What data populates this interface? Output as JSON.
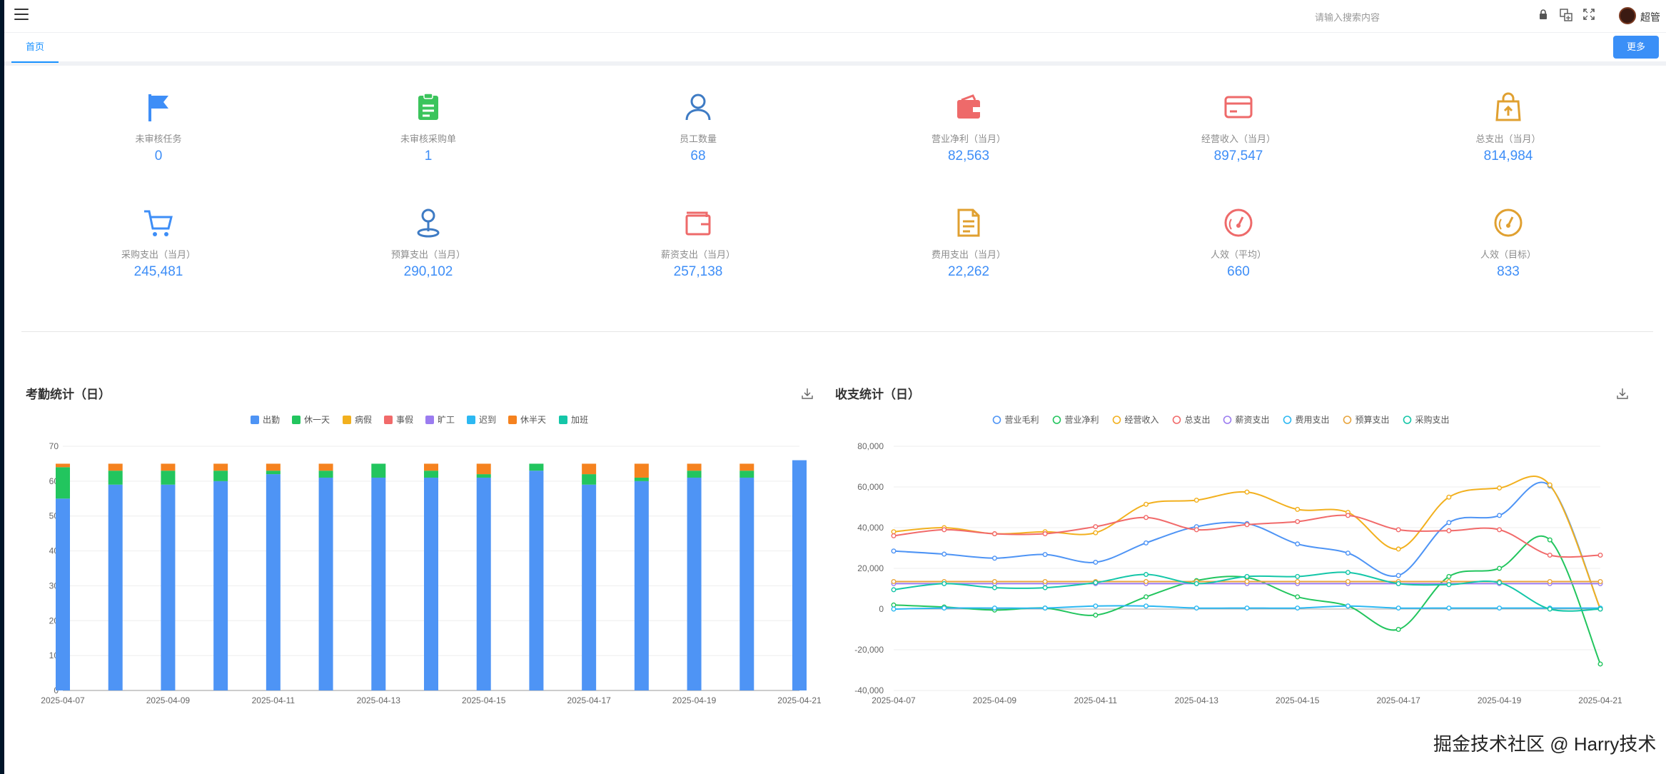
{
  "header": {
    "search_placeholder": "请输入搜索内容",
    "user_name": "超管",
    "icons": [
      "lock-icon",
      "translate-icon",
      "fullscreen-icon"
    ]
  },
  "tabs": {
    "home": "首页",
    "more": "更多"
  },
  "stats": [
    {
      "icon": "flag-icon",
      "color": "#3e8ef7",
      "label": "未审核任务",
      "value": "0"
    },
    {
      "icon": "clipboard-icon",
      "color": "#3bc45c",
      "label": "未审核采购单",
      "value": "1"
    },
    {
      "icon": "user-icon",
      "color": "#3e7bc4",
      "label": "员工数量",
      "value": "68"
    },
    {
      "icon": "wallet-icon",
      "color": "#ee6a6a",
      "label": "营业净利（当月）",
      "value": "82,563"
    },
    {
      "icon": "credit-card-icon",
      "color": "#ee6a6a",
      "label": "经营收入（当月）",
      "value": "897,547"
    },
    {
      "icon": "shopping-bag-icon",
      "color": "#e0a030",
      "label": "总支出（当月）",
      "value": "814,984"
    },
    {
      "icon": "cart-icon",
      "color": "#3e8ef7",
      "label": "采购支出（当月）",
      "value": "245,481"
    },
    {
      "icon": "location-pin-icon",
      "color": "#3e7bc4",
      "label": "预算支出（当月）",
      "value": "290,102"
    },
    {
      "icon": "wallet-outline-icon",
      "color": "#ee6a6a",
      "label": "薪资支出（当月）",
      "value": "257,138"
    },
    {
      "icon": "document-icon",
      "color": "#e0a030",
      "label": "费用支出（当月）",
      "value": "22,262"
    },
    {
      "icon": "gauge-icon",
      "color": "#ee6a6a",
      "label": "人效（平均）",
      "value": "660"
    },
    {
      "icon": "gauge-target-icon",
      "color": "#e0a030",
      "label": "人效（目标）",
      "value": "833"
    }
  ],
  "watermark": "掘金技术社区 @ Harry技术",
  "chart_data": [
    {
      "type": "bar",
      "stacked": true,
      "title": "考勤统计（日）",
      "categories": [
        "2025-04-07",
        "2025-04-08",
        "2025-04-09",
        "2025-04-10",
        "2025-04-11",
        "2025-04-12",
        "2025-04-13",
        "2025-04-14",
        "2025-04-15",
        "2025-04-16",
        "2025-04-17",
        "2025-04-18",
        "2025-04-19",
        "2025-04-20",
        "2025-04-21"
      ],
      "x_tick_labels": [
        "2025-04-07",
        "2025-04-09",
        "2025-04-11",
        "2025-04-13",
        "2025-04-15",
        "2025-04-17",
        "2025-04-19",
        "2025-04-21"
      ],
      "ylim": [
        0,
        70
      ],
      "y_ticks": [
        0,
        10,
        20,
        30,
        40,
        50,
        60,
        70
      ],
      "legend_position": "top-center",
      "series": [
        {
          "name": "出勤",
          "color": "#4e94f5",
          "values": [
            55,
            59,
            59,
            60,
            62,
            61,
            61,
            61,
            61,
            63,
            59,
            60,
            61,
            61,
            66
          ]
        },
        {
          "name": "休一天",
          "color": "#22c55e",
          "values": [
            9,
            4,
            4,
            3,
            1,
            2,
            4,
            2,
            1,
            2,
            3,
            1,
            2,
            2,
            0
          ]
        },
        {
          "name": "病假",
          "color": "#f2b01e",
          "values": [
            0,
            0,
            0,
            0,
            0,
            0,
            0,
            0,
            0,
            0,
            0,
            0,
            0,
            0,
            0
          ]
        },
        {
          "name": "事假",
          "color": "#f16a6a",
          "values": [
            0,
            0,
            0,
            0,
            0,
            0,
            0,
            0,
            0,
            0,
            0,
            0,
            0,
            0,
            0
          ]
        },
        {
          "name": "旷工",
          "color": "#9b7cf0",
          "values": [
            0,
            0,
            0,
            0,
            0,
            0,
            0,
            0,
            0,
            0,
            0,
            0,
            0,
            0,
            0
          ]
        },
        {
          "name": "迟到",
          "color": "#2cb8f2",
          "values": [
            0,
            0,
            0,
            0,
            0,
            0,
            0,
            0,
            0,
            0,
            0,
            0,
            0,
            0,
            0
          ]
        },
        {
          "name": "休半天",
          "color": "#f5821f",
          "values": [
            1,
            2,
            2,
            2,
            2,
            2,
            0,
            2,
            3,
            0,
            3,
            4,
            2,
            2,
            0
          ]
        },
        {
          "name": "加班",
          "color": "#14c6a8",
          "values": [
            0,
            0,
            0,
            0,
            0,
            0,
            0,
            0,
            0,
            0,
            0,
            0,
            0,
            0,
            0
          ]
        }
      ]
    },
    {
      "type": "line",
      "smooth": true,
      "title": "收支统计（日）",
      "categories": [
        "2025-04-07",
        "2025-04-08",
        "2025-04-09",
        "2025-04-10",
        "2025-04-11",
        "2025-04-12",
        "2025-04-13",
        "2025-04-14",
        "2025-04-15",
        "2025-04-16",
        "2025-04-17",
        "2025-04-18",
        "2025-04-19",
        "2025-04-20",
        "2025-04-21"
      ],
      "x_tick_labels": [
        "2025-04-07",
        "2025-04-09",
        "2025-04-11",
        "2025-04-13",
        "2025-04-15",
        "2025-04-17",
        "2025-04-19",
        "2025-04-21"
      ],
      "ylim": [
        -40000,
        80000
      ],
      "y_ticks": [
        -40000,
        -20000,
        0,
        20000,
        40000,
        60000,
        80000
      ],
      "y_tick_labels": [
        "-40,000",
        "-20,000",
        "0",
        "20,000",
        "40,000",
        "60,000",
        "80,000"
      ],
      "legend_position": "top-center",
      "series": [
        {
          "name": "营业毛利",
          "color": "#4e94f5",
          "values": [
            28500,
            27000,
            25000,
            26800,
            23000,
            32500,
            40500,
            42000,
            32000,
            27500,
            16500,
            42500,
            46000,
            60500,
            0
          ]
        },
        {
          "name": "营业净利",
          "color": "#22c55e",
          "values": [
            2000,
            1000,
            -500,
            500,
            -3000,
            6000,
            14000,
            15500,
            6000,
            1500,
            -10000,
            16000,
            20000,
            34000,
            -27000
          ]
        },
        {
          "name": "经营收入",
          "color": "#f2b01e",
          "values": [
            38000,
            40000,
            37000,
            38000,
            37500,
            51500,
            53500,
            57500,
            49000,
            47500,
            29500,
            55000,
            59500,
            61000,
            0
          ]
        },
        {
          "name": "总支出",
          "color": "#f16a6a",
          "values": [
            36000,
            39000,
            37000,
            37000,
            40500,
            45000,
            39000,
            41500,
            43000,
            46000,
            39000,
            38500,
            39000,
            26500,
            26500
          ]
        },
        {
          "name": "薪资支出",
          "color": "#9b7cf0",
          "values": [
            12500,
            12500,
            12500,
            12500,
            12500,
            12500,
            12500,
            12500,
            12500,
            12500,
            12500,
            12500,
            12500,
            12500,
            12500
          ]
        },
        {
          "name": "费用支出",
          "color": "#2cb8f2",
          "values": [
            0,
            500,
            500,
            500,
            1500,
            1500,
            500,
            500,
            500,
            1500,
            500,
            500,
            500,
            500,
            500
          ]
        },
        {
          "name": "预算支出",
          "color": "#e8a43c",
          "values": [
            13500,
            13500,
            13500,
            13500,
            13500,
            13500,
            13500,
            13500,
            13500,
            13500,
            13500,
            13500,
            13500,
            13500,
            13500
          ]
        },
        {
          "name": "采购支出",
          "color": "#14c6a8",
          "values": [
            9500,
            12500,
            10500,
            10500,
            13000,
            17000,
            12500,
            16000,
            16000,
            18000,
            12500,
            12000,
            13000,
            0,
            0
          ]
        }
      ]
    }
  ]
}
